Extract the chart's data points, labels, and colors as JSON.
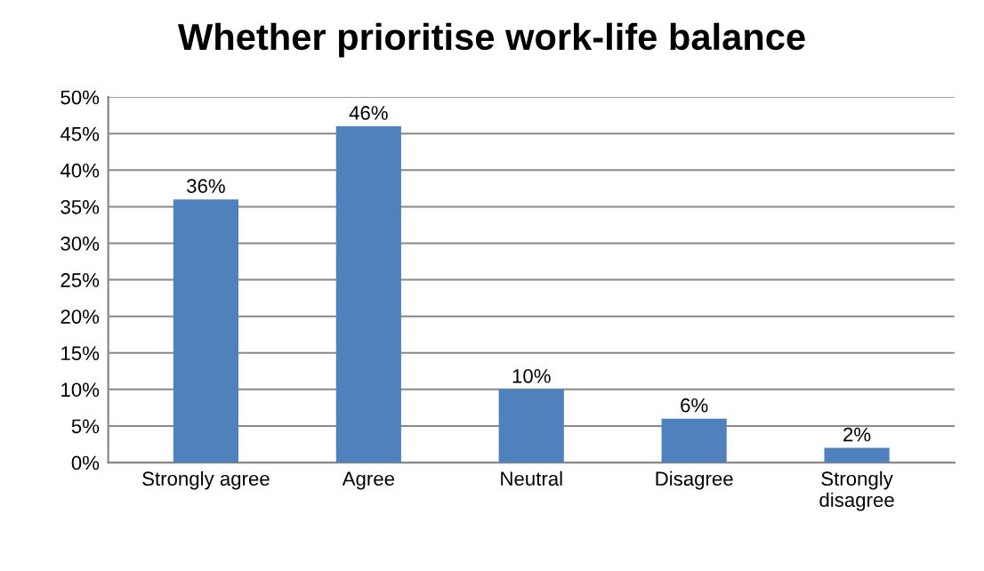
{
  "chart_data": {
    "type": "bar",
    "title": "Whether prioritise work-life balance",
    "categories": [
      "Strongly agree",
      "Agree",
      "Neutral",
      "Disagree",
      "Strongly\ndisagree"
    ],
    "values": [
      36,
      46,
      10,
      6,
      2
    ],
    "value_labels": [
      "36%",
      "46%",
      "10%",
      "6%",
      "2%"
    ],
    "color": "#4f81bd",
    "ylim": [
      0,
      50
    ],
    "yticks": [
      {
        "value": 0,
        "label": "0%"
      },
      {
        "value": 5,
        "label": "5%"
      },
      {
        "value": 10,
        "label": "10%"
      },
      {
        "value": 15,
        "label": "15%"
      },
      {
        "value": 20,
        "label": "20%"
      },
      {
        "value": 25,
        "label": "25%"
      },
      {
        "value": 30,
        "label": "30%"
      },
      {
        "value": 35,
        "label": "35%"
      },
      {
        "value": 40,
        "label": "40%"
      },
      {
        "value": 45,
        "label": "45%"
      },
      {
        "value": 50,
        "label": "50%"
      }
    ],
    "grid": "y"
  }
}
